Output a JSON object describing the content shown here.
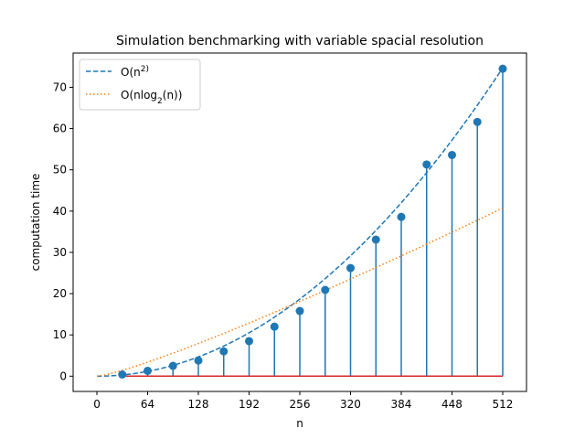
{
  "chart_data": {
    "type": "stem",
    "title": "Simulation benchmarking with variable spacial resolution",
    "xlabel": "n",
    "ylabel": "computation time",
    "xlim": [
      -30,
      542
    ],
    "ylim": [
      -3.7,
      78.3
    ],
    "xticks": [
      0,
      64,
      128,
      192,
      256,
      320,
      384,
      448,
      512
    ],
    "yticks": [
      0,
      10,
      20,
      30,
      40,
      50,
      60,
      70
    ],
    "legend_position": "upper-left",
    "series": [
      {
        "name": "$O(n^2)$",
        "style": "dashed",
        "color": "#1f77b4",
        "formula": "quadratic",
        "coef": 0.000285,
        "x_range": [
          0,
          512
        ]
      },
      {
        "name": "$O(n\\log_2(n))$",
        "style": "dotted",
        "color": "#ff7f0e",
        "formula": "nlogn",
        "coef": 0.00884,
        "x_range": [
          0,
          512
        ]
      }
    ],
    "stems": {
      "color": "#1f77b4",
      "baseline_color": "#d62728",
      "x": [
        32,
        64,
        96,
        128,
        160,
        192,
        224,
        256,
        288,
        320,
        352,
        384,
        416,
        448,
        480,
        512
      ],
      "y": [
        0.4,
        1.3,
        2.5,
        3.8,
        6.0,
        8.5,
        12.0,
        15.8,
        20.9,
        26.2,
        33.1,
        38.6,
        51.3,
        53.6,
        61.6,
        74.5
      ]
    }
  }
}
